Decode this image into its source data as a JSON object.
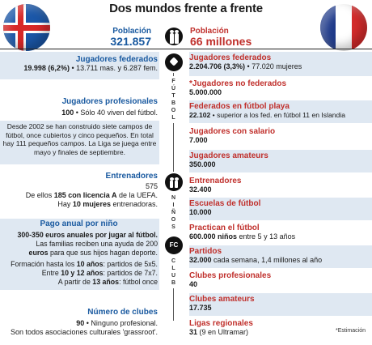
{
  "title": "Dos mundos frente a frente",
  "iceland": {
    "population_label": "Población",
    "population_value": "321.857",
    "sections": {
      "federados": {
        "heading": "Jugadores federados",
        "line_bold": "19.998 (6,2%)",
        "line_rest": " • 13.711 mas. y 6.287 fem."
      },
      "profesionales": {
        "heading": "Jugadores profesionales",
        "line_bold": "100",
        "line_rest": " • Sólo 40 viven del fútbol."
      },
      "campos": {
        "text": "Desde 2002 se han construido siete campos de fútbol, once cubiertos y cinco pequeños. En total hay 111 pequeños campos. La Liga se juega entre mayo y finales de septiembre."
      },
      "entrenadores": {
        "heading": "Entrenadores",
        "value": "575",
        "line2_pre": "De ellos ",
        "line2_bold": "185 con licencia A",
        "line2_post": " de la UEFA.",
        "line3_pre": "Hay ",
        "line3_bold": "10 mujeres",
        "line3_post": " entrenadoras."
      },
      "pago": {
        "heading": "Pago anual por niño",
        "l1_bold": "300-350 euros anuales por jugar al fútbol.",
        "l2": "Las familias reciben una ayuda de 200",
        "l3_bold": "euros",
        "l3_post": " para que sus hijos hagan deporte.",
        "l4_pre": "Formación hasta los ",
        "l4_bold": "10 años",
        "l4_post": ": partidos de 5x5.",
        "l5_pre": "Entre ",
        "l5_bold": "10 y 12 años",
        "l5_post": ": partidos de 7x7.",
        "l6_pre": "A partir de ",
        "l6_bold": "13 años",
        "l6_post": ": fútbol once"
      },
      "clubes": {
        "heading": "Número de clubes",
        "l1_bold": "90",
        "l1_post": " • Ninguno profesional.",
        "l2": "Son todos asociaciones culturales 'grassroot'."
      }
    }
  },
  "france": {
    "population_label": "Población",
    "population_value": "66 millones",
    "items": [
      {
        "heading": "Jugadores federados",
        "bold": "2.204.706 (3,3%)",
        "rest": " • 77.020 mujeres"
      },
      {
        "heading": "*Jugadores no federados",
        "bold": "5.000.000",
        "rest": ""
      },
      {
        "heading": "Federados en fútbol playa",
        "bold": "22.102",
        "rest": " • superior a los fed. en fútbol 11 en Islandia"
      },
      {
        "heading": "Jugadores con salario",
        "bold": "7.000",
        "rest": ""
      },
      {
        "heading": "Jugadores amateurs",
        "bold": "350.000",
        "rest": ""
      },
      {
        "heading": "Entrenadores",
        "bold": "32.400",
        "rest": ""
      },
      {
        "heading": "Escuelas de fútbol",
        "bold": "10.000",
        "rest": ""
      },
      {
        "heading": "Practican el fútbol",
        "bold": "600.000 niños",
        "rest": " entre 5 y 13 años"
      },
      {
        "heading": "Partidos",
        "bold": "32.000",
        "rest": " cada semana, 1,4 millones al año"
      },
      {
        "heading": "Clubes profesionales",
        "bold": "40",
        "rest": ""
      },
      {
        "heading": "Clubes amateurs",
        "bold": "17.735",
        "rest": ""
      },
      {
        "heading": "Ligas regionales",
        "bold": "31",
        "rest": " (9 en Ultramar)"
      }
    ],
    "note": "*Estimación"
  },
  "center": {
    "futbol_letters": "F\nÚ\nT\nB\nO\nL",
    "ninos_letters": "N\nI\nÑ\nO\nS",
    "club_letters": "C\nL\nU\nB",
    "club_icon_text": "FC"
  },
  "colors": {
    "iceland_accent": "#1a5aa0",
    "france_accent": "#c0302c",
    "iceland_shade": "#dfe8f2",
    "france_shade": "#f6dede"
  },
  "icons": [
    "iceland-flag-icon",
    "france-flag-icon",
    "people-icon",
    "football-icon",
    "children-icon",
    "club-icon"
  ]
}
